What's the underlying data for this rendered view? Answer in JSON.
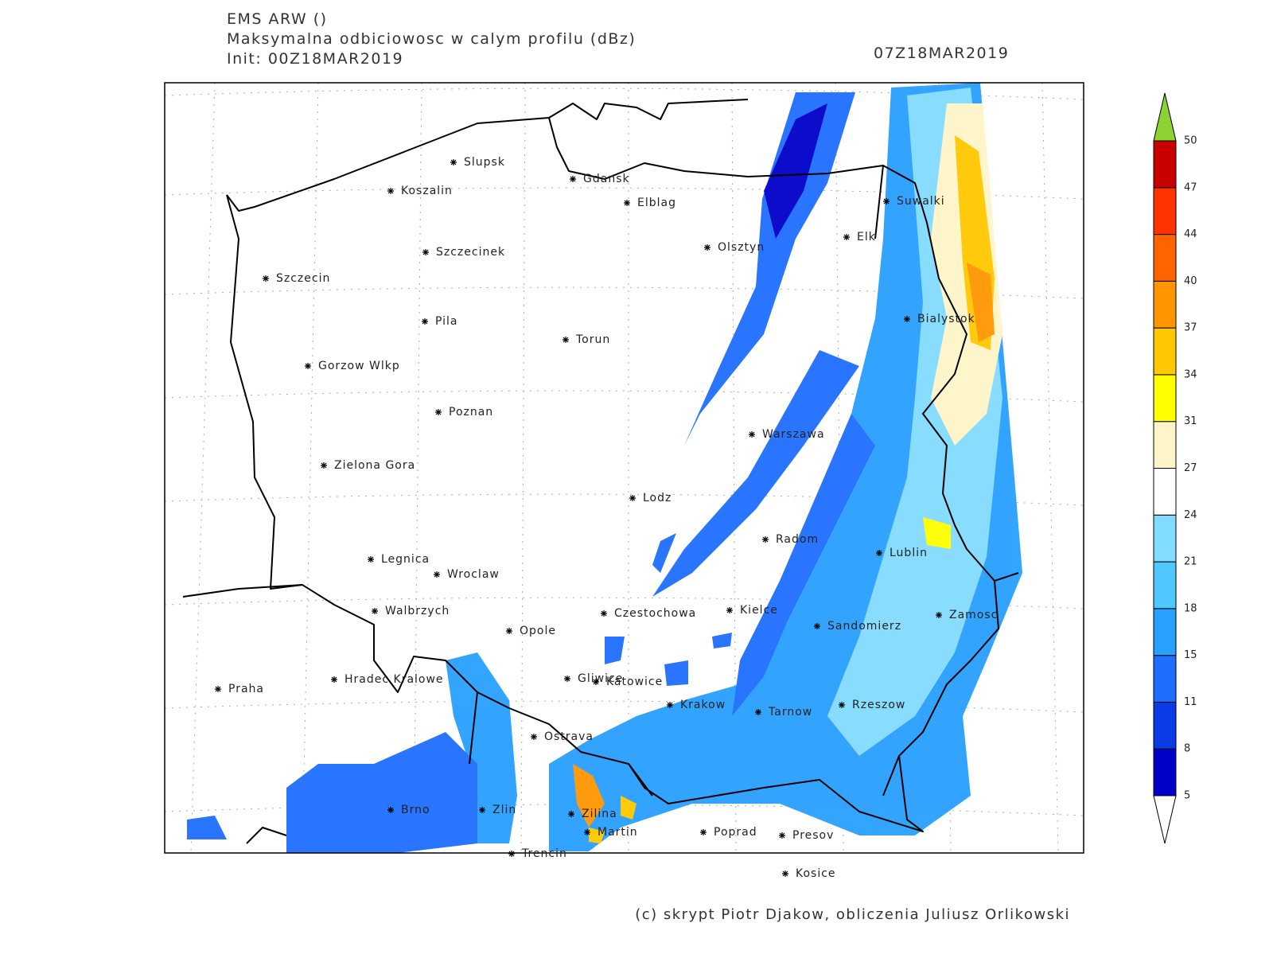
{
  "header": {
    "model": "EMS ARW ()",
    "field": "Maksymalna odbiciowosc w calym profilu (dBz)",
    "init": "Init: 00Z18MAR2019",
    "valid": "07Z18MAR2019"
  },
  "cities": [
    "Slupsk",
    "Koszalin",
    "Gdansk",
    "Elblag",
    "Olsztyn",
    "Suwalki",
    "Elk",
    "Szczecinek",
    "Szczecin",
    "Pila",
    "Torun",
    "Bialystok",
    "Gorzow Wlkp",
    "Poznan",
    "Warszawa",
    "Zielona Gora",
    "Lodz",
    "Radom",
    "Lublin",
    "Legnica",
    "Wroclaw",
    "Walbrzych",
    "Czestochowa",
    "Kielce",
    "Zamosc",
    "Opole",
    "Sandomierz",
    "Praha",
    "Hradec Kralowe",
    "Gliwice",
    "Katowice",
    "Krakow",
    "Tarnow",
    "Rzeszow",
    "Ostrava",
    "Brno",
    "Zlin",
    "Zilina",
    "Martin",
    "Poprad",
    "Presov",
    "Trencin",
    "Kosice"
  ],
  "legend": {
    "levels": [
      5,
      8,
      11,
      15,
      18,
      21,
      24,
      27,
      31,
      34,
      37,
      40,
      44,
      47,
      50
    ],
    "colors": [
      "#0000c8",
      "#0a3ce6",
      "#1e6eff",
      "#28a0ff",
      "#50c8ff",
      "#82dcff",
      "#ffffff",
      "#fff5c8",
      "#ffff00",
      "#ffc800",
      "#ff9600",
      "#ff6400",
      "#ff3200",
      "#c80000"
    ],
    "under_color": "#ffffff",
    "over_color": "#8cd232"
  },
  "footer": "(c) skrypt Piotr Djakow, obliczenia Juliusz Orlikowski"
}
